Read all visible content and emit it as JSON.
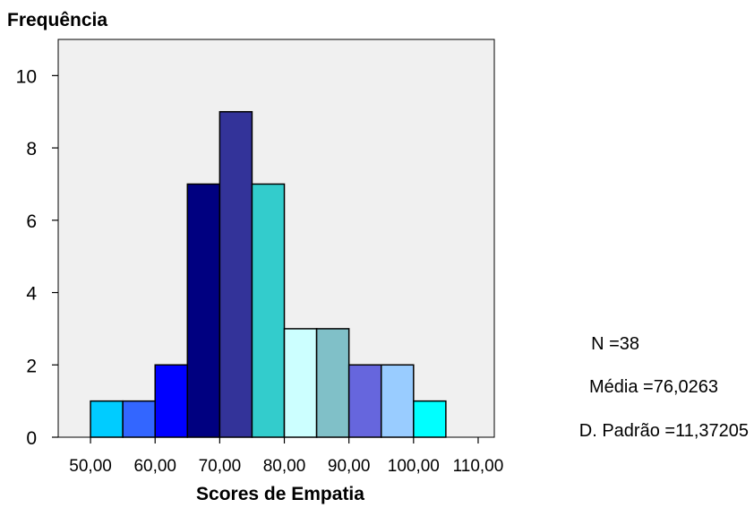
{
  "chart_data": {
    "type": "bar",
    "title": "",
    "ylabel": "Frequência",
    "xlabel": "Scores de Empatia",
    "bins": [
      {
        "from": 50,
        "to": 55,
        "count": 1,
        "color": "#00ccff"
      },
      {
        "from": 55,
        "to": 60,
        "count": 1,
        "color": "#3366ff"
      },
      {
        "from": 60,
        "to": 65,
        "count": 2,
        "color": "#0000ff"
      },
      {
        "from": 65,
        "to": 70,
        "count": 7,
        "color": "#000080"
      },
      {
        "from": 70,
        "to": 75,
        "count": 9,
        "color": "#333399"
      },
      {
        "from": 75,
        "to": 80,
        "count": 7,
        "color": "#33cccc"
      },
      {
        "from": 80,
        "to": 85,
        "count": 3,
        "color": "#ccffff"
      },
      {
        "from": 85,
        "to": 90,
        "count": 3,
        "color": "#80c0c8"
      },
      {
        "from": 90,
        "to": 95,
        "count": 2,
        "color": "#6666dd"
      },
      {
        "from": 95,
        "to": 100,
        "count": 2,
        "color": "#99ccff"
      },
      {
        "from": 100,
        "to": 105,
        "count": 1,
        "color": "#00ffff"
      }
    ],
    "x_ticks": [
      50,
      60,
      70,
      80,
      90,
      100,
      110
    ],
    "x_tick_labels": [
      "50,00",
      "60,00",
      "70,00",
      "80,00",
      "90,00",
      "100,00",
      "110,00"
    ],
    "y_ticks": [
      0,
      2,
      4,
      6,
      8,
      10
    ],
    "y_tick_labels": [
      "0",
      "2",
      "4",
      "6",
      "8",
      "10"
    ],
    "xlim": [
      45,
      112.5
    ],
    "ylim": [
      0,
      11
    ],
    "plot_background": "#f0f0f0",
    "grid": false,
    "stats": {
      "n": "N =38",
      "mean": "Média =76,0263",
      "std": "D. Padrão =11,37205"
    }
  }
}
